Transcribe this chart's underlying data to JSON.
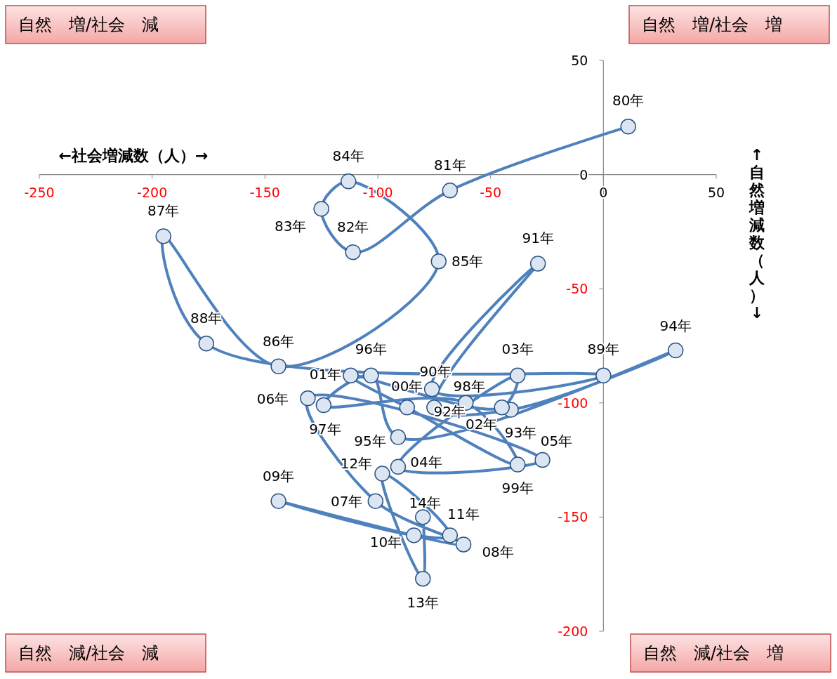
{
  "chart_data": {
    "type": "line",
    "xlabel": "←社会増減数（人）→",
    "ylabel": "↑自然増減数（人）↓",
    "annotations": [
      "自然　増/社会　減",
      "自然　増/社会　増",
      "自然　減/社会　減",
      "自然　減/社会　増",
      {
        "text": "80年",
        "x": 11,
        "y": 21
      },
      {
        "text": "81年",
        "x": -68,
        "y": -7
      },
      {
        "text": "82年",
        "x": -111,
        "y": -34
      },
      {
        "text": "83年",
        "x": -125,
        "y": -15
      },
      {
        "text": "84年",
        "x": -113,
        "y": -3
      },
      {
        "text": "85年",
        "x": -73,
        "y": -38
      },
      {
        "text": "86年",
        "x": -144,
        "y": -84
      },
      {
        "text": "87年",
        "x": -195,
        "y": -27
      },
      {
        "text": "88年",
        "x": -176,
        "y": -74
      },
      {
        "text": "89年",
        "x": 0,
        "y": -88
      },
      {
        "text": "90年",
        "x": -76,
        "y": -94
      },
      {
        "text": "91年",
        "x": -29,
        "y": -39
      },
      {
        "text": "92年",
        "x": -75,
        "y": -102
      },
      {
        "text": "93年",
        "x": -41,
        "y": -103
      },
      {
        "text": "94年",
        "x": 32,
        "y": -77
      },
      {
        "text": "95年",
        "x": -91,
        "y": -115
      },
      {
        "text": "96年",
        "x": -103,
        "y": -88
      },
      {
        "text": "97年",
        "x": -124,
        "y": -101
      },
      {
        "text": "98年",
        "x": -61,
        "y": -100
      },
      {
        "text": "99年",
        "x": -38,
        "y": -127
      },
      {
        "text": "00年",
        "x": -87,
        "y": -102
      },
      {
        "text": "01年",
        "x": -112,
        "y": -88
      },
      {
        "text": "02年",
        "x": -45,
        "y": -102
      },
      {
        "text": "03年",
        "x": -38,
        "y": -88
      },
      {
        "text": "04年",
        "x": -91,
        "y": -128
      },
      {
        "text": "05年",
        "x": -27,
        "y": -125
      },
      {
        "text": "06年",
        "x": -131,
        "y": -98
      },
      {
        "text": "07年",
        "x": -101,
        "y": -143
      },
      {
        "text": "08年",
        "x": -62,
        "y": -162
      },
      {
        "text": "09年",
        "x": -144,
        "y": -143
      },
      {
        "text": "10年",
        "x": -84,
        "y": -158
      },
      {
        "text": "11年",
        "x": -68,
        "y": -158
      },
      {
        "text": "12年",
        "x": -98,
        "y": -131
      },
      {
        "text": "13年",
        "x": -80,
        "y": -177
      },
      {
        "text": "14年",
        "x": -80,
        "y": -150
      }
    ],
    "xlim": [
      -250,
      50
    ],
    "ylim": [
      -200,
      50
    ],
    "xticks": [
      -250,
      -200,
      -150,
      -100,
      -50,
      0,
      50
    ],
    "yticks": [
      -200,
      -150,
      -100,
      -50,
      0,
      50
    ],
    "grid": false,
    "marker": "circle",
    "line_style": "solid",
    "series": [
      {
        "color": "#4f81bd",
        "x": [
          11,
          -68,
          -111,
          -125,
          -113,
          -73,
          -144,
          -195,
          -176,
          0,
          -76,
          -29,
          -75,
          -41,
          32,
          -91,
          -103,
          -124,
          -61,
          -38,
          -87,
          -112,
          -45,
          -38,
          -91,
          -27,
          -131,
          -101,
          -62,
          -144,
          -84,
          -68,
          -98,
          -80,
          -80
        ],
        "values": [
          21,
          -7,
          -34,
          -15,
          -3,
          -38,
          -84,
          -27,
          -74,
          -88,
          -94,
          -39,
          -102,
          -103,
          -77,
          -115,
          -88,
          -101,
          -100,
          -127,
          -102,
          -88,
          -102,
          -88,
          -128,
          -125,
          -98,
          -143,
          -162,
          -143,
          -158,
          -158,
          -131,
          -177,
          -150
        ]
      }
    ]
  }
}
